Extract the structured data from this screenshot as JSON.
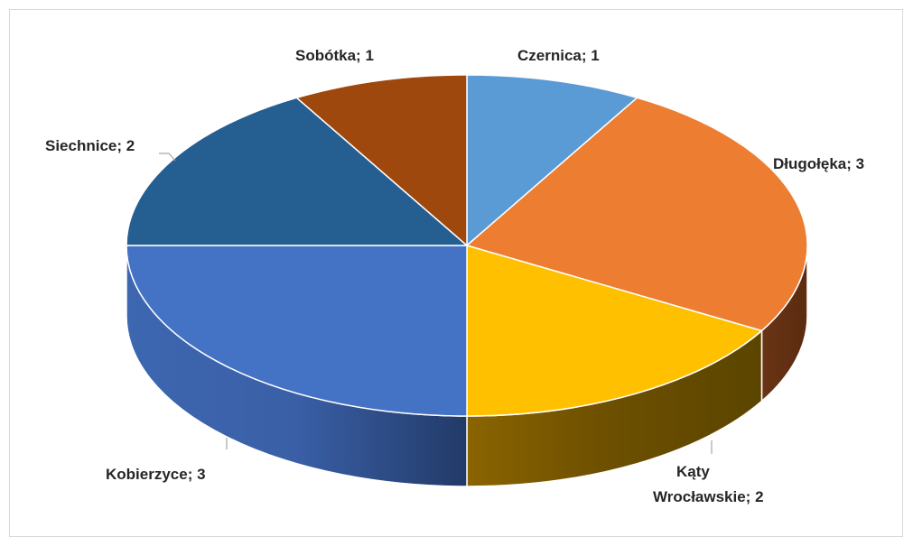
{
  "chart_data": {
    "type": "pie",
    "title": "",
    "slices": [
      {
        "label": "Czernica",
        "value": 1,
        "color": "#5b9bd5"
      },
      {
        "label": "Długołęka",
        "value": 3,
        "color": "#ed7d31"
      },
      {
        "label": "Kąty Wrocławskie",
        "value": 2,
        "color": "#ffc000"
      },
      {
        "label": "Kobierzyce",
        "value": 3,
        "color": "#4472c4"
      },
      {
        "label": "Siechnice",
        "value": 2,
        "color": "#255e91"
      },
      {
        "label": "Sobótka",
        "value": 1,
        "color": "#9e480e"
      }
    ],
    "labels": [
      {
        "text": "Czernica; 1"
      },
      {
        "text": "Długołęka; 3"
      },
      {
        "line1": "Kąty",
        "line2": "Wrocławskie; 2"
      },
      {
        "text": "Kobierzyce; 3"
      },
      {
        "text": "Siechnice; 2"
      },
      {
        "text": "Sobótka; 1"
      }
    ],
    "legend": "none",
    "style": "3d-pie"
  }
}
